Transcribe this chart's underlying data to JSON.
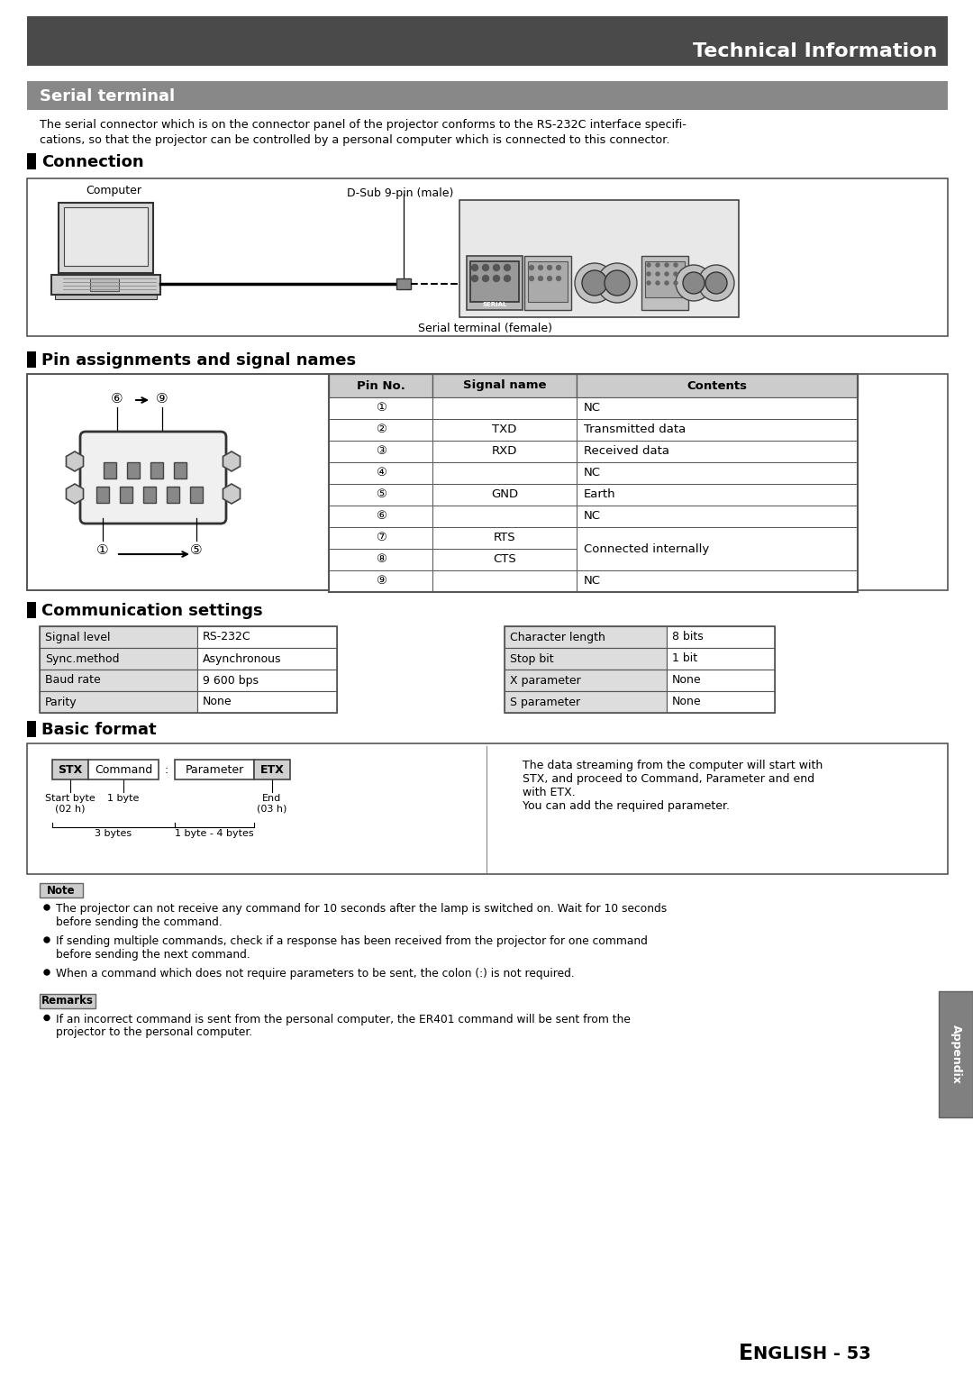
{
  "page_bg": "#ffffff",
  "header_bg": "#4a4a4a",
  "header_text": "Technical Information",
  "header_text_color": "#ffffff",
  "section_bg": "#888888",
  "section_text_color": "#ffffff",
  "serial_terminal_title": "Serial terminal",
  "intro_text1": "The serial connector which is on the connector panel of the projector conforms to the RS-232C interface specifi-",
  "intro_text2": "cations, so that the projector can be controlled by a personal computer which is connected to this connector.",
  "connection_title": "Connection",
  "pin_title": "Pin assignments and signal names",
  "pin_headers": [
    "Pin No.",
    "Signal name",
    "Contents"
  ],
  "pin_data": [
    [
      "①",
      "",
      "NC"
    ],
    [
      "②",
      "TXD",
      "Transmitted data"
    ],
    [
      "③",
      "RXD",
      "Received data"
    ],
    [
      "④",
      "",
      "NC"
    ],
    [
      "⑤",
      "GND",
      "Earth"
    ],
    [
      "⑥",
      "",
      "NC"
    ],
    [
      "⑦",
      "RTS",
      "Connected internally"
    ],
    [
      "⑧",
      "CTS",
      ""
    ],
    [
      "⑨",
      "",
      "NC"
    ]
  ],
  "comm_title": "Communication settings",
  "comm_left": [
    [
      "Signal level",
      "RS-232C"
    ],
    [
      "Sync.method",
      "Asynchronous"
    ],
    [
      "Baud rate",
      "9 600 bps"
    ],
    [
      "Parity",
      "None"
    ]
  ],
  "comm_right": [
    [
      "Character length",
      "8 bits"
    ],
    [
      "Stop bit",
      "1 bit"
    ],
    [
      "X parameter",
      "None"
    ],
    [
      "S parameter",
      "None"
    ]
  ],
  "basic_title": "Basic format",
  "basic_format_labels": [
    "STX",
    "Command",
    ":",
    "Parameter",
    "ETX"
  ],
  "basic_desc": "The data streaming from the computer will start with\nSTX, and proceed to Command, Parameter and end\nwith ETX.\nYou can add the required parameter.",
  "note_title": "Note",
  "note_bullets": [
    "The projector can not receive any command for 10 seconds after the lamp is switched on. Wait for 10 seconds\nbefore sending the command.",
    "If sending multiple commands, check if a response has been received from the projector for one command\nbefore sending the next command.",
    "When a command which does not require parameters to be sent, the colon (:) is not required."
  ],
  "remarks_title": "Remarks",
  "remarks_bullets": [
    "If an incorrect command is sent from the personal computer, the ER401 command will be sent from the\nprojector to the personal computer."
  ],
  "page_number_e": "E",
  "page_number_rest": "NGLISH - 53",
  "appendix_text": "Appendix",
  "table_header_bg": "#cccccc",
  "table_row_bg": "#ffffff",
  "table_border": "#555555",
  "comm_label_bg": "#dddddd"
}
